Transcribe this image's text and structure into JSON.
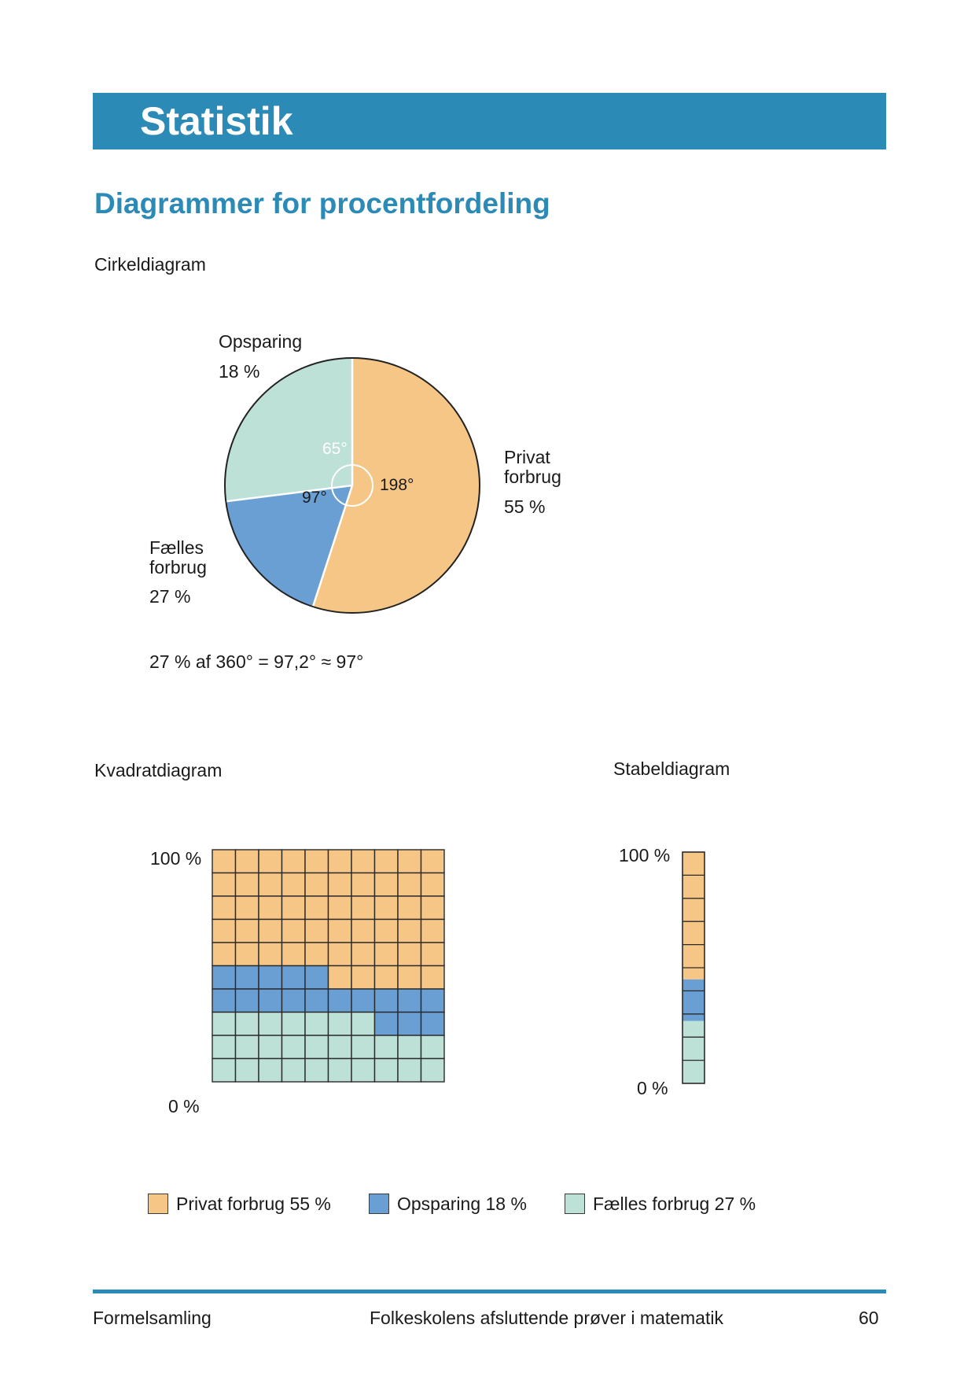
{
  "header": {
    "title": "Statistik"
  },
  "section_title": "Diagrammer for procentfordeling",
  "pie": {
    "heading": "Cirkeldiagram",
    "labels": {
      "opsparing": {
        "name": "Opsparing",
        "pct": "18 %"
      },
      "privat": {
        "line1": "Privat",
        "line2": "forbrug",
        "pct": "55 %"
      },
      "faelles": {
        "line1": "Fælles",
        "line2": "forbrug",
        "pct": "27 %"
      }
    },
    "angles": {
      "opsparing": "65°",
      "faelles": "97°",
      "privat": "198°"
    },
    "formula": "27 % af 360°  =  97,2° ≈  97°"
  },
  "square": {
    "heading": "Kvadratdiagram",
    "top_label": "100 %",
    "bottom_label": "0 %"
  },
  "stack": {
    "heading": "Stabeldiagram",
    "top_label": "100 %",
    "bottom_label": "0 %"
  },
  "legend": [
    {
      "label": "Privat forbrug 55 %",
      "color": "#f6c686"
    },
    {
      "label": "Opsparing 18 %",
      "color": "#6a9fd4"
    },
    {
      "label": "Fælles forbrug 27 %",
      "color": "#bde0d7"
    }
  ],
  "chart_data": [
    {
      "type": "pie",
      "categories": [
        "Privat forbrug",
        "Opsparing",
        "Fælles forbrug"
      ],
      "values": [
        55,
        18,
        27
      ],
      "angles_deg": [
        198,
        65,
        97
      ],
      "colors": [
        "#f6c686",
        "#6a9fd4",
        "#bde0d7"
      ]
    },
    {
      "type": "heatmap",
      "grid": [
        10,
        10
      ],
      "categories": [
        "Privat forbrug",
        "Opsparing",
        "Fælles forbrug"
      ],
      "values": [
        55,
        18,
        27
      ],
      "colors": [
        "#f6c686",
        "#6a9fd4",
        "#bde0d7"
      ],
      "ylim": [
        0,
        100
      ]
    },
    {
      "type": "bar",
      "stacked": true,
      "categories": [
        "Fælles forbrug",
        "Opsparing",
        "Privat forbrug"
      ],
      "values": [
        27,
        18,
        55
      ],
      "colors": [
        "#bde0d7",
        "#6a9fd4",
        "#f6c686"
      ],
      "ylim": [
        0,
        100
      ]
    }
  ],
  "footer": {
    "left": "Formelsamling",
    "center": "Folkeskolens afsluttende prøver i matematik",
    "page": "60"
  }
}
